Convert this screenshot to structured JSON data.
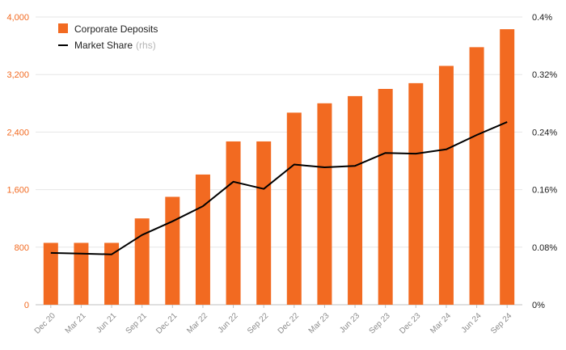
{
  "chart_data": {
    "type": "bar",
    "categories": [
      "Dec 20",
      "Mar 21",
      "Jun 21",
      "Sep 21",
      "Dec 21",
      "Mar 22",
      "Jun 22",
      "Sep 22",
      "Dec 22",
      "Mar 23",
      "Jun 23",
      "Sep 23",
      "Dec 23",
      "Mar 24",
      "Jun 24",
      "Sep 24"
    ],
    "series": [
      {
        "name": "Corporate Deposits",
        "type": "bar",
        "axis": "left",
        "color": "#f26a21",
        "values": [
          860,
          860,
          860,
          1200,
          1500,
          1810,
          2270,
          2270,
          2670,
          2800,
          2900,
          3000,
          3080,
          3320,
          3580,
          3830
        ]
      },
      {
        "name": "Market Share",
        "type": "line",
        "axis": "right",
        "color": "#000000",
        "values": [
          0.00072,
          0.00071,
          0.0007,
          0.00097,
          0.00116,
          0.00137,
          0.00171,
          0.00161,
          0.00195,
          0.00191,
          0.00193,
          0.00211,
          0.0021,
          0.00216,
          0.00236,
          0.00254
        ]
      }
    ],
    "legend": {
      "position": "top-left",
      "items": [
        {
          "label": "Corporate Deposits",
          "suffix": ""
        },
        {
          "label": "Market Share",
          "suffix": "(rhs)"
        }
      ]
    },
    "y_left": {
      "min": 0,
      "max": 4000,
      "ticks": [
        0,
        800,
        1600,
        2400,
        3200,
        4000
      ],
      "tick_labels": [
        "0",
        "800",
        "1,600",
        "2,400",
        "3,200",
        "4,000"
      ],
      "color": "#f26a21"
    },
    "y_right": {
      "min": 0,
      "max": 0.004,
      "ticks": [
        0,
        0.0008,
        0.0016,
        0.0024,
        0.0032,
        0.004
      ],
      "tick_labels": [
        "0%",
        "0.08%",
        "0.16%",
        "0.24%",
        "0.32%",
        "0.4%"
      ],
      "color": "#1a1a1a"
    },
    "grid": true
  }
}
